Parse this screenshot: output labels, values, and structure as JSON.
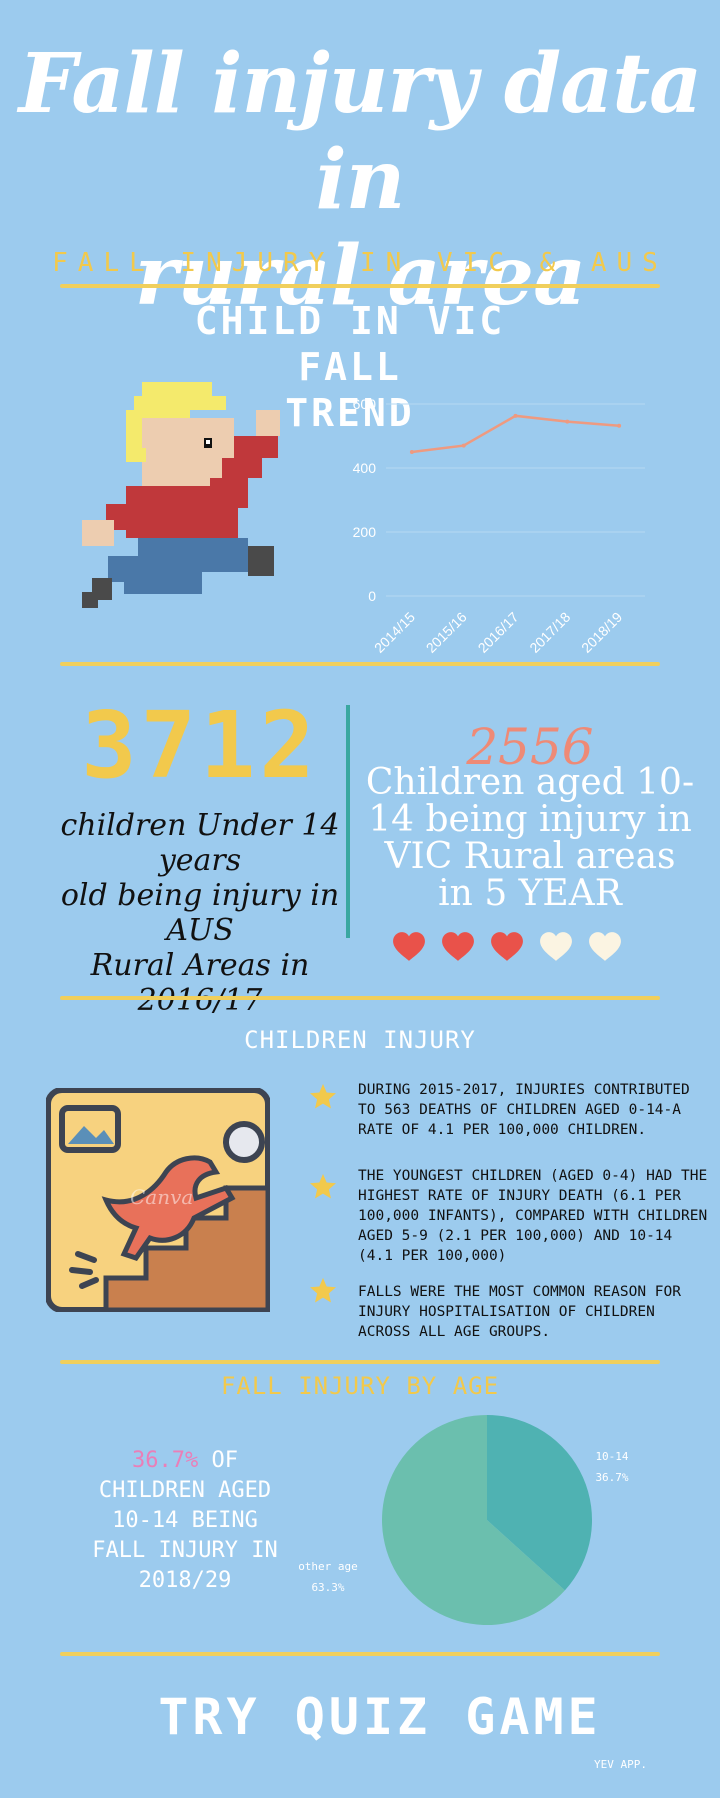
{
  "header": {
    "title_line1": "Fall injury data in",
    "title_line2": "rural area",
    "subtitle": "FALL INJURY IN VIC & AUS"
  },
  "trend": {
    "title_line1": "CHILD IN VIC FALL",
    "title_line2": "TREND"
  },
  "chart_data": [
    {
      "type": "line",
      "title": "CHILD IN VIC FALL TREND",
      "categories": [
        "2014/15",
        "2015/16",
        "2016/17",
        "2017/18",
        "2018/19"
      ],
      "series": [
        {
          "values": [
            450,
            470,
            563,
            545,
            532
          ]
        }
      ],
      "yticks": [
        0,
        200,
        400,
        600
      ],
      "ylim": [
        0,
        600
      ],
      "grid": true,
      "line_color": "#ee9a80"
    },
    {
      "type": "pie",
      "title": "FALL INJURY BY AGE",
      "slices": [
        {
          "label": "10-14",
          "value": 36.7,
          "value_label": "36.7%",
          "color": "#4fb2b2"
        },
        {
          "label": "other age",
          "value": 63.3,
          "value_label": "63.3%",
          "color": "#6bbfae"
        }
      ]
    }
  ],
  "stats": {
    "aus_number": "3712",
    "aus_desc_line1": "children Under 14 years",
    "aus_desc_line2": "old being injury in AUS",
    "aus_desc_line3": "Rural Areas in",
    "aus_desc_line4": "2016/17",
    "vic_number": "2556",
    "vic_desc_line1": "Children aged 10-",
    "vic_desc_line2": "14 being injury in",
    "vic_desc_line3": "VIC Rural areas",
    "vic_desc_line4": "in 5 YEAR",
    "hearts_filled": 3,
    "hearts_total": 5,
    "heart_colors": {
      "filled": "#e9524a",
      "empty": "#fbf4e2"
    }
  },
  "children_injury": {
    "heading": "CHILDREN INJURY",
    "image_watermark": "Canva",
    "facts": [
      {
        "l1": "DURING 2015-2017, INJURIES CONTRIBUTED",
        "l2": "TO 563 DEATHS OF CHILDREN AGED 0-14-A",
        "l3": "RATE OF 4.1 PER 100,000 CHILDREN."
      },
      {
        "l1": "THE YOUNGEST CHILDREN (AGED 0-4) HAD THE",
        "l2": "HIGHEST RATE OF INJURY DEATH (6.1 PER",
        "l3": "100,000 INFANTS), COMPARED WITH CHILDREN",
        "l4": "AGED 5-9 (2.1 PER 100,000) AND 10-14",
        "l5": "(4.1 PER 100,000)"
      },
      {
        "l1": "FALLS WERE THE MOST COMMON REASON FOR",
        "l2": "INJURY HOSPITALISATION OF CHILDREN",
        "l3": "ACROSS ALL AGE GROUPS."
      }
    ]
  },
  "by_age": {
    "heading": "FALL INJURY BY AGE",
    "pct": "36.7%",
    "text_l1_rest": " OF",
    "text_l2": "CHILDREN AGED",
    "text_l3": "10-14 BEING",
    "text_l4": "FALL INJURY IN",
    "text_l5": "2018/29"
  },
  "footer": {
    "quiz": "TRY QUIZ GAME",
    "brand": "YEV APP."
  },
  "colors": {
    "background": "#9ccbee",
    "accent_yellow": "#f2c94c",
    "rule": "#f0cf5c",
    "teal": "#3aa7a0",
    "salmon": "#ee8a76",
    "pink": "#ea7fb8"
  }
}
